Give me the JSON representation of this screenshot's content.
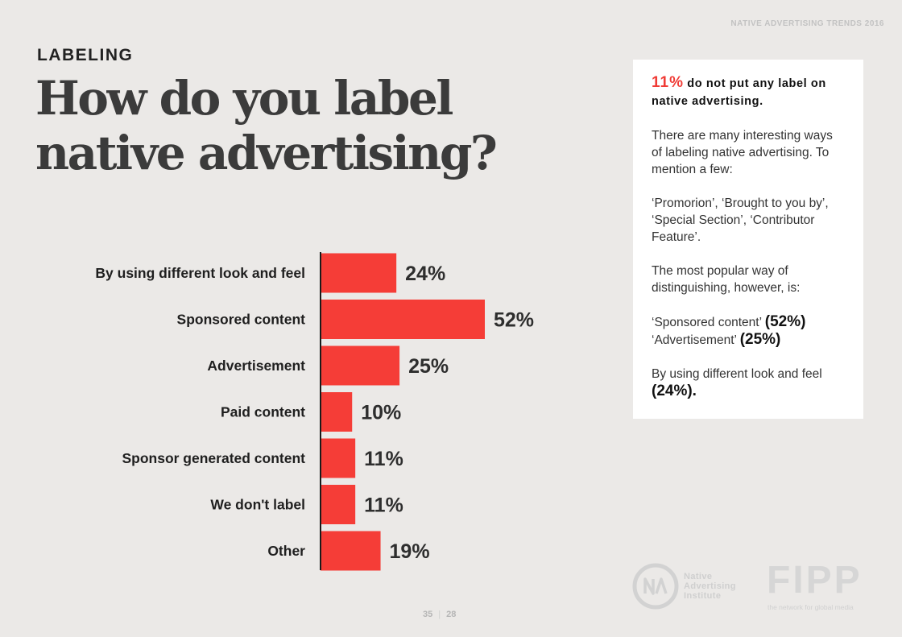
{
  "header": {
    "report_tag": "NATIVE ADVERTISING TRENDS 2016"
  },
  "section_label": "LABELING",
  "title": {
    "line1": "How do you label",
    "line2": "native advertising?"
  },
  "chart_data": {
    "type": "bar",
    "orientation": "horizontal",
    "categories": [
      "By using different look and feel",
      "Sponsored content",
      "Advertisement",
      "Paid content",
      "Sponsor generated content",
      "We don't label",
      "Other"
    ],
    "values": [
      24,
      52,
      25,
      10,
      11,
      11,
      19
    ],
    "value_labels": [
      "24%",
      "52%",
      "25%",
      "10%",
      "11%",
      "11%",
      "19%"
    ],
    "unit": "%",
    "title": "How do you label native advertising?",
    "xlim": [
      0,
      52
    ],
    "bar_color": "#f53d37"
  },
  "callout": {
    "highlight_pct": "11%",
    "highlight_text": "do not put any label on native advertising.",
    "para1": "There are many interesting ways of labeling native advertising. To mention a few:",
    "para2": "‘Promorion’, ‘Brought to you by’, ‘Special Section’, ‘Contributor Feature’.",
    "para3": "The most popular way of distinguishing, however, is:",
    "item1_text": "‘Sponsored content’",
    "item1_pct": "(52%)",
    "item2_text": "‘Advertisement’",
    "item2_pct": "(25%)",
    "item3_text": "By using different look and feel",
    "item3_pct": "(24%).",
    "accent_color": "#f03c36"
  },
  "footer": {
    "page_current": "35",
    "page_total": "28",
    "nai_logo_line1": "Native",
    "nai_logo_line2": "Advertising",
    "nai_logo_line3": "Institute",
    "fipp_logo": "FIPP",
    "fipp_tagline": "the network for global media"
  }
}
